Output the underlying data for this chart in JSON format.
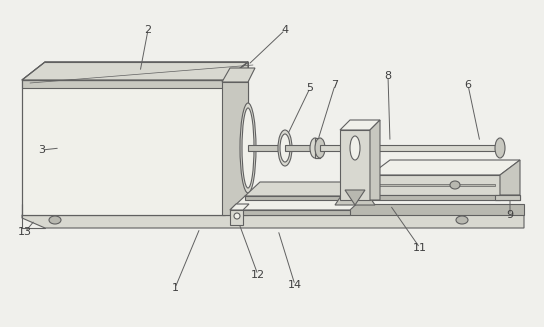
{
  "bg_color": "#f0f0ec",
  "line_color": "#606060",
  "lw": 0.8,
  "label_color": "#404040",
  "label_fontsize": 8,
  "hatch_color": "#c0c0b8",
  "face_light": "#f0f0ea",
  "face_mid": "#d8d8d0",
  "face_dark": "#b8b8b0",
  "face_side": "#c8c8c0"
}
